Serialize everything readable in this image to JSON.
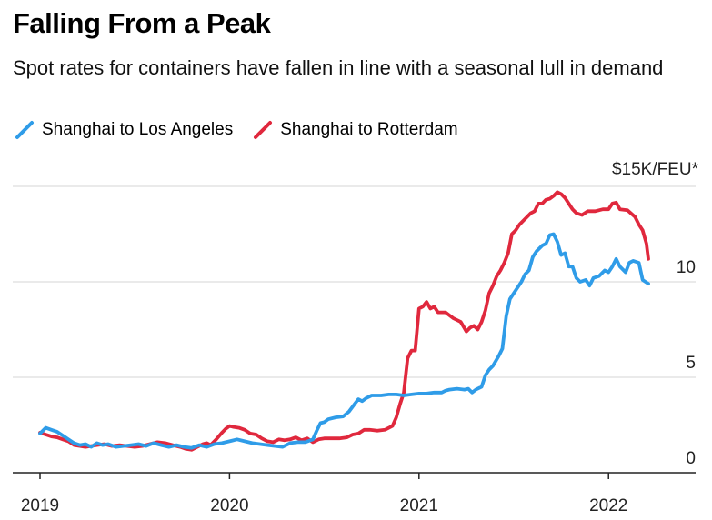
{
  "colors": {
    "la": "#2f9ce8",
    "rotterdam": "#e0283d",
    "grid": "#d6d6d6",
    "axis": "#222222"
  },
  "chart_data": {
    "type": "line",
    "title": "Falling From a Peak",
    "subtitle": "Spot rates for containers have fallen in line with a seasonal lull in demand",
    "xlabel": "",
    "ylabel": "",
    "unit_label": "$15K/FEU*",
    "xlim": [
      2019.0,
      2022.45
    ],
    "ylim": [
      0,
      15
    ],
    "x_ticks": [
      {
        "value": 2019,
        "label": "2019"
      },
      {
        "value": 2020,
        "label": "2020"
      },
      {
        "value": 2021,
        "label": "2021"
      },
      {
        "value": 2022,
        "label": "2022"
      }
    ],
    "y_ticks": [
      {
        "value": 0,
        "label": "0"
      },
      {
        "value": 5,
        "label": "5"
      },
      {
        "value": 10,
        "label": "10"
      },
      {
        "value": 15,
        "label": ""
      }
    ],
    "grid": true,
    "legend_position": "top-left",
    "series": [
      {
        "name": "Shanghai to Los Angeles",
        "color_key": "la",
        "points": [
          [
            2019.0,
            2.05
          ],
          [
            2019.03,
            2.35
          ],
          [
            2019.06,
            2.25
          ],
          [
            2019.09,
            2.15
          ],
          [
            2019.12,
            1.95
          ],
          [
            2019.15,
            1.75
          ],
          [
            2019.18,
            1.55
          ],
          [
            2019.21,
            1.45
          ],
          [
            2019.24,
            1.5
          ],
          [
            2019.27,
            1.35
          ],
          [
            2019.3,
            1.55
          ],
          [
            2019.33,
            1.45
          ],
          [
            2019.36,
            1.5
          ],
          [
            2019.4,
            1.35
          ],
          [
            2019.44,
            1.4
          ],
          [
            2019.48,
            1.45
          ],
          [
            2019.52,
            1.5
          ],
          [
            2019.56,
            1.4
          ],
          [
            2019.6,
            1.55
          ],
          [
            2019.64,
            1.45
          ],
          [
            2019.68,
            1.35
          ],
          [
            2019.72,
            1.45
          ],
          [
            2019.76,
            1.35
          ],
          [
            2019.8,
            1.3
          ],
          [
            2019.84,
            1.45
          ],
          [
            2019.88,
            1.35
          ],
          [
            2019.92,
            1.5
          ],
          [
            2019.96,
            1.55
          ],
          [
            2020.0,
            1.65
          ],
          [
            2020.04,
            1.75
          ],
          [
            2020.08,
            1.65
          ],
          [
            2020.12,
            1.55
          ],
          [
            2020.16,
            1.5
          ],
          [
            2020.2,
            1.45
          ],
          [
            2020.24,
            1.4
          ],
          [
            2020.28,
            1.35
          ],
          [
            2020.32,
            1.55
          ],
          [
            2020.36,
            1.6
          ],
          [
            2020.4,
            1.6
          ],
          [
            2020.44,
            1.75
          ],
          [
            2020.46,
            2.2
          ],
          [
            2020.48,
            2.6
          ],
          [
            2020.5,
            2.65
          ],
          [
            2020.52,
            2.8
          ],
          [
            2020.56,
            2.9
          ],
          [
            2020.6,
            2.95
          ],
          [
            2020.63,
            3.2
          ],
          [
            2020.66,
            3.6
          ],
          [
            2020.68,
            3.85
          ],
          [
            2020.7,
            3.75
          ],
          [
            2020.72,
            3.9
          ],
          [
            2020.75,
            4.05
          ],
          [
            2020.8,
            4.05
          ],
          [
            2020.84,
            4.1
          ],
          [
            2020.88,
            4.1
          ],
          [
            2020.92,
            4.05
          ],
          [
            2020.96,
            4.1
          ],
          [
            2021.0,
            4.15
          ],
          [
            2021.04,
            4.15
          ],
          [
            2021.08,
            4.2
          ],
          [
            2021.12,
            4.2
          ],
          [
            2021.14,
            4.3
          ],
          [
            2021.16,
            4.35
          ],
          [
            2021.2,
            4.4
          ],
          [
            2021.24,
            4.35
          ],
          [
            2021.26,
            4.4
          ],
          [
            2021.28,
            4.2
          ],
          [
            2021.3,
            4.35
          ],
          [
            2021.33,
            4.5
          ],
          [
            2021.35,
            5.1
          ],
          [
            2021.37,
            5.4
          ],
          [
            2021.39,
            5.6
          ],
          [
            2021.42,
            6.1
          ],
          [
            2021.44,
            6.5
          ],
          [
            2021.46,
            8.2
          ],
          [
            2021.48,
            9.1
          ],
          [
            2021.5,
            9.4
          ],
          [
            2021.52,
            9.7
          ],
          [
            2021.54,
            10.0
          ],
          [
            2021.56,
            10.4
          ],
          [
            2021.58,
            10.6
          ],
          [
            2021.6,
            11.3
          ],
          [
            2021.62,
            11.6
          ],
          [
            2021.65,
            11.9
          ],
          [
            2021.67,
            12.0
          ],
          [
            2021.69,
            12.45
          ],
          [
            2021.71,
            12.5
          ],
          [
            2021.73,
            12.1
          ],
          [
            2021.75,
            11.4
          ],
          [
            2021.77,
            11.5
          ],
          [
            2021.79,
            10.8
          ],
          [
            2021.81,
            10.8
          ],
          [
            2021.83,
            10.2
          ],
          [
            2021.85,
            10.0
          ],
          [
            2021.88,
            10.1
          ],
          [
            2021.9,
            9.8
          ],
          [
            2021.92,
            10.2
          ],
          [
            2021.95,
            10.3
          ],
          [
            2021.98,
            10.6
          ],
          [
            2022.0,
            10.5
          ],
          [
            2022.02,
            10.8
          ],
          [
            2022.04,
            11.2
          ],
          [
            2022.06,
            10.8
          ],
          [
            2022.09,
            10.5
          ],
          [
            2022.11,
            11.0
          ],
          [
            2022.13,
            11.1
          ],
          [
            2022.16,
            11.0
          ],
          [
            2022.18,
            10.1
          ],
          [
            2022.21,
            9.9
          ]
        ]
      },
      {
        "name": "Shanghai to Rotterdam",
        "color_key": "rotterdam",
        "points": [
          [
            2019.0,
            2.1
          ],
          [
            2019.03,
            2.0
          ],
          [
            2019.06,
            1.9
          ],
          [
            2019.09,
            1.85
          ],
          [
            2019.12,
            1.75
          ],
          [
            2019.15,
            1.65
          ],
          [
            2019.18,
            1.45
          ],
          [
            2019.21,
            1.4
          ],
          [
            2019.24,
            1.35
          ],
          [
            2019.27,
            1.4
          ],
          [
            2019.3,
            1.45
          ],
          [
            2019.34,
            1.5
          ],
          [
            2019.38,
            1.4
          ],
          [
            2019.42,
            1.45
          ],
          [
            2019.46,
            1.4
          ],
          [
            2019.5,
            1.35
          ],
          [
            2019.54,
            1.4
          ],
          [
            2019.58,
            1.5
          ],
          [
            2019.62,
            1.6
          ],
          [
            2019.66,
            1.55
          ],
          [
            2019.7,
            1.45
          ],
          [
            2019.74,
            1.35
          ],
          [
            2019.77,
            1.25
          ],
          [
            2019.8,
            1.2
          ],
          [
            2019.83,
            1.35
          ],
          [
            2019.86,
            1.5
          ],
          [
            2019.88,
            1.55
          ],
          [
            2019.9,
            1.45
          ],
          [
            2019.93,
            1.75
          ],
          [
            2019.96,
            2.1
          ],
          [
            2019.98,
            2.3
          ],
          [
            2020.0,
            2.45
          ],
          [
            2020.02,
            2.4
          ],
          [
            2020.05,
            2.35
          ],
          [
            2020.08,
            2.25
          ],
          [
            2020.11,
            2.05
          ],
          [
            2020.14,
            2.0
          ],
          [
            2020.17,
            1.8
          ],
          [
            2020.2,
            1.65
          ],
          [
            2020.23,
            1.6
          ],
          [
            2020.26,
            1.75
          ],
          [
            2020.29,
            1.7
          ],
          [
            2020.32,
            1.75
          ],
          [
            2020.35,
            1.85
          ],
          [
            2020.38,
            1.7
          ],
          [
            2020.41,
            1.8
          ],
          [
            2020.44,
            1.6
          ],
          [
            2020.47,
            1.75
          ],
          [
            2020.5,
            1.8
          ],
          [
            2020.54,
            1.8
          ],
          [
            2020.58,
            1.8
          ],
          [
            2020.62,
            1.85
          ],
          [
            2020.65,
            2.0
          ],
          [
            2020.68,
            2.05
          ],
          [
            2020.71,
            2.25
          ],
          [
            2020.74,
            2.25
          ],
          [
            2020.78,
            2.2
          ],
          [
            2020.82,
            2.25
          ],
          [
            2020.86,
            2.45
          ],
          [
            2020.88,
            2.9
          ],
          [
            2020.9,
            3.6
          ],
          [
            2020.92,
            4.2
          ],
          [
            2020.94,
            6.0
          ],
          [
            2020.96,
            6.4
          ],
          [
            2020.98,
            6.4
          ],
          [
            2021.0,
            8.6
          ],
          [
            2021.02,
            8.7
          ],
          [
            2021.04,
            8.95
          ],
          [
            2021.06,
            8.6
          ],
          [
            2021.08,
            8.7
          ],
          [
            2021.1,
            8.4
          ],
          [
            2021.14,
            8.4
          ],
          [
            2021.18,
            8.1
          ],
          [
            2021.22,
            7.9
          ],
          [
            2021.25,
            7.4
          ],
          [
            2021.27,
            7.6
          ],
          [
            2021.29,
            7.7
          ],
          [
            2021.31,
            7.5
          ],
          [
            2021.33,
            7.9
          ],
          [
            2021.35,
            8.5
          ],
          [
            2021.37,
            9.4
          ],
          [
            2021.39,
            9.8
          ],
          [
            2021.41,
            10.3
          ],
          [
            2021.43,
            10.6
          ],
          [
            2021.45,
            11.0
          ],
          [
            2021.47,
            11.5
          ],
          [
            2021.49,
            12.5
          ],
          [
            2021.51,
            12.7
          ],
          [
            2021.53,
            13.0
          ],
          [
            2021.55,
            13.2
          ],
          [
            2021.57,
            13.4
          ],
          [
            2021.59,
            13.6
          ],
          [
            2021.61,
            13.7
          ],
          [
            2021.63,
            14.1
          ],
          [
            2021.65,
            14.1
          ],
          [
            2021.67,
            14.3
          ],
          [
            2021.69,
            14.35
          ],
          [
            2021.71,
            14.5
          ],
          [
            2021.73,
            14.7
          ],
          [
            2021.75,
            14.6
          ],
          [
            2021.77,
            14.4
          ],
          [
            2021.79,
            14.1
          ],
          [
            2021.81,
            13.8
          ],
          [
            2021.83,
            13.6
          ],
          [
            2021.86,
            13.5
          ],
          [
            2021.89,
            13.7
          ],
          [
            2021.93,
            13.7
          ],
          [
            2021.97,
            13.8
          ],
          [
            2022.0,
            13.8
          ],
          [
            2022.02,
            14.1
          ],
          [
            2022.04,
            14.15
          ],
          [
            2022.06,
            13.8
          ],
          [
            2022.1,
            13.75
          ],
          [
            2022.14,
            13.4
          ],
          [
            2022.16,
            13.0
          ],
          [
            2022.18,
            12.7
          ],
          [
            2022.2,
            12.0
          ],
          [
            2022.21,
            11.2
          ]
        ]
      }
    ]
  }
}
